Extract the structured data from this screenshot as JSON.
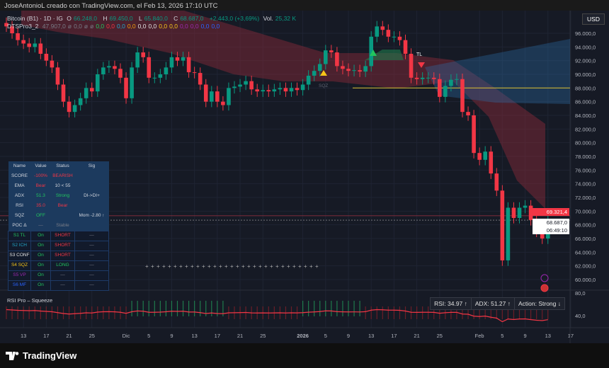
{
  "header": {
    "attribution": "JoseAntonioL creado con TradingView.com, el Feb 13, 2026 17:10 UTC"
  },
  "legend": {
    "symbol": "Bitcoin (B1) · 1D · IG",
    "open_label": "O",
    "open": "66.248,0",
    "high_label": "H",
    "high": "69.450,0",
    "low_label": "L",
    "low": "65.840,0",
    "close_label": "C",
    "close": "68.687,0",
    "change": "+2.443,0 (+3,69%)",
    "vol_label": "Vol.",
    "vol": "25,32 K",
    "indicator": "DTSPro3_2",
    "ind_values": [
      {
        "v": "47.907,0",
        "c": "#787b86"
      },
      {
        "v": "ø",
        "c": "#787b86"
      },
      {
        "v": "0,0",
        "c": "#787b86"
      },
      {
        "v": "ø",
        "c": "#787b86"
      },
      {
        "v": "ø",
        "c": "#787b86"
      },
      {
        "v": "0,0",
        "c": "#22c55e"
      },
      {
        "v": "0,0",
        "c": "#f23645"
      },
      {
        "v": "0,0",
        "c": "#22a6c8"
      },
      {
        "v": "0,0",
        "c": "#f59e0b"
      },
      {
        "v": "0,0",
        "c": "#e0e0e0"
      },
      {
        "v": "0,0",
        "c": "#e0e0e0"
      },
      {
        "v": "0,0",
        "c": "#f5c518"
      },
      {
        "v": "0,0",
        "c": "#f5c518"
      },
      {
        "v": "0,0",
        "c": "#9c27b0"
      },
      {
        "v": "0,0",
        "c": "#9c27b0"
      },
      {
        "v": "0,0",
        "c": "#2962ff"
      },
      {
        "v": "0,0",
        "c": "#2962ff"
      }
    ]
  },
  "currency": "USD",
  "price_tag": {
    "line_price": "69.321,4",
    "last_price": "68.687,0",
    "countdown": "06:49:10"
  },
  "markers": {
    "tl": "TL",
    "sqz": "SQZ"
  },
  "table": {
    "headers": [
      "Name",
      "Value",
      "Status",
      "Sig"
    ],
    "rows": [
      {
        "cells": [
          "SCORE",
          "-100%",
          "BEARISH",
          ""
        ],
        "colors": [
          "#d1d4dc",
          "#f23645",
          "#f23645",
          ""
        ],
        "section": "top"
      },
      {
        "cells": [
          "EMA",
          "Bear",
          "10 < 55",
          ""
        ],
        "colors": [
          "#d1d4dc",
          "#f23645",
          "#d1d4dc",
          ""
        ],
        "section": "top"
      },
      {
        "cells": [
          "ADX",
          "51.3",
          "Strong",
          "DI->DI+"
        ],
        "colors": [
          "#d1d4dc",
          "#22c55e",
          "#22c55e",
          "#d1d4dc"
        ],
        "section": "top"
      },
      {
        "cells": [
          "RSI",
          "35.0",
          "Bear",
          ""
        ],
        "colors": [
          "#d1d4dc",
          "#f23645",
          "#f23645",
          ""
        ],
        "section": "top"
      },
      {
        "cells": [
          "SQZ",
          "OFF",
          "",
          "Mom -2.80 ↑"
        ],
        "colors": [
          "#d1d4dc",
          "#22c55e",
          "",
          "#d1d4dc"
        ],
        "section": "top"
      },
      {
        "cells": [
          "POC Δ",
          "—",
          "Stable",
          ""
        ],
        "colors": [
          "#d1d4dc",
          "#787b86",
          "#787b86",
          ""
        ],
        "section": "top"
      },
      {
        "cells": [
          "S1 TL",
          "On",
          "SHORT",
          "—"
        ],
        "colors": [
          "#22c55e",
          "#22c55e",
          "#f23645",
          "#787b86"
        ],
        "section": "bot"
      },
      {
        "cells": [
          "S2 ICH",
          "On",
          "SHORT",
          "—"
        ],
        "colors": [
          "#22a6c8",
          "#22c55e",
          "#f23645",
          "#787b86"
        ],
        "section": "bot"
      },
      {
        "cells": [
          "S3 CONF",
          "On",
          "SHORT",
          "—"
        ],
        "colors": [
          "#e0e0e0",
          "#22c55e",
          "#f23645",
          "#787b86"
        ],
        "section": "bot"
      },
      {
        "cells": [
          "S4 SQZ",
          "On",
          "LONG",
          "—"
        ],
        "colors": [
          "#f5c518",
          "#22c55e",
          "#22c55e",
          "#787b86"
        ],
        "section": "bot"
      },
      {
        "cells": [
          "S5 VP",
          "On",
          "—",
          "—"
        ],
        "colors": [
          "#9c27b0",
          "#22c55e",
          "#787b86",
          "#787b86"
        ],
        "section": "bot"
      },
      {
        "cells": [
          "S6 MF",
          "On",
          "—",
          "—"
        ],
        "colors": [
          "#2962ff",
          "#22c55e",
          "#787b86",
          "#787b86"
        ],
        "section": "bot"
      }
    ]
  },
  "rsi_panel": {
    "title": "RSI Pro – Squeeze",
    "rsi": "RSI: 34.97 ↑",
    "adx": "ADX: 51.27 ↑",
    "action": "Action: Strong ↓",
    "levels": [
      "80,0",
      "40,0"
    ]
  },
  "colors": {
    "up": "#089981",
    "down": "#f23645",
    "background": "#161a25",
    "poc": "#c9b037"
  },
  "chart_data": {
    "type": "candlestick",
    "interval": "1D",
    "start_date": "2025-11-10",
    "closes": [
      97,
      96,
      95,
      94.5,
      94,
      94.5,
      93,
      92,
      91,
      88.5,
      86,
      84.5,
      85.5,
      86.5,
      88,
      87.5,
      90,
      91,
      91.2,
      90.8,
      89.5,
      86.5,
      91,
      93.2,
      92.5,
      89.5,
      89.5,
      90,
      91,
      92.5,
      92,
      92.5,
      90.3,
      90.2,
      88.5,
      86,
      87.5,
      86,
      85.5,
      88,
      88.2,
      88.5,
      89,
      87.8,
      87.5,
      87.7,
      87.5,
      87.8,
      88,
      87.5,
      88,
      87.7,
      88.5,
      89.8,
      90.5,
      91.5,
      93.5,
      93.2,
      91.2,
      90.8,
      90.5,
      90.6,
      90.4,
      91.2,
      95.5,
      97,
      96.5,
      95.5,
      95.5,
      95,
      93,
      89.5,
      89.3,
      89.5,
      89.5,
      89.3,
      86.7,
      88.3,
      89.2,
      89.3,
      84.5,
      84,
      78.5,
      77.5,
      78.7,
      75.5,
      73,
      62.8,
      70.5,
      69,
      70.5,
      70.8,
      68.7,
      67,
      66,
      68.687
    ],
    "price_unit": "thousand USD",
    "ylim": [
      58000,
      98000
    ],
    "y_ticks": [
      "96.000,0",
      "94.000,0",
      "92.000,0",
      "90.000,0",
      "88.000,0",
      "86.000,0",
      "84.000,0",
      "82.000,0",
      "80.000,0",
      "78.000,0",
      "76.000,0",
      "74.000,0",
      "72.000,0",
      "70.000,0",
      "68.000,0",
      "66.000,0",
      "64.000,0",
      "62.000,0",
      "60.000,0"
    ],
    "x_ticks": [
      {
        "label": "13",
        "day": 3
      },
      {
        "label": "17",
        "day": 7
      },
      {
        "label": "21",
        "day": 11
      },
      {
        "label": "25",
        "day": 15
      },
      {
        "label": "Dic",
        "day": 21
      },
      {
        "label": "5",
        "day": 25
      },
      {
        "label": "9",
        "day": 29
      },
      {
        "label": "13",
        "day": 33
      },
      {
        "label": "17",
        "day": 37
      },
      {
        "label": "21",
        "day": 41
      },
      {
        "label": "25",
        "day": 45
      },
      {
        "label": "2026",
        "day": 52
      },
      {
        "label": "5",
        "day": 56
      },
      {
        "label": "9",
        "day": 60
      },
      {
        "label": "13",
        "day": 64
      },
      {
        "label": "17",
        "day": 68
      },
      {
        "label": "21",
        "day": 72
      },
      {
        "label": "25",
        "day": 76
      },
      {
        "label": "Feb",
        "day": 83
      },
      {
        "label": "5",
        "day": 87
      },
      {
        "label": "9",
        "day": 91
      },
      {
        "label": "13",
        "day": 95
      },
      {
        "label": "17",
        "day": 99
      }
    ],
    "poc_price": 88000
  },
  "footer": {
    "brand": "TradingView"
  }
}
